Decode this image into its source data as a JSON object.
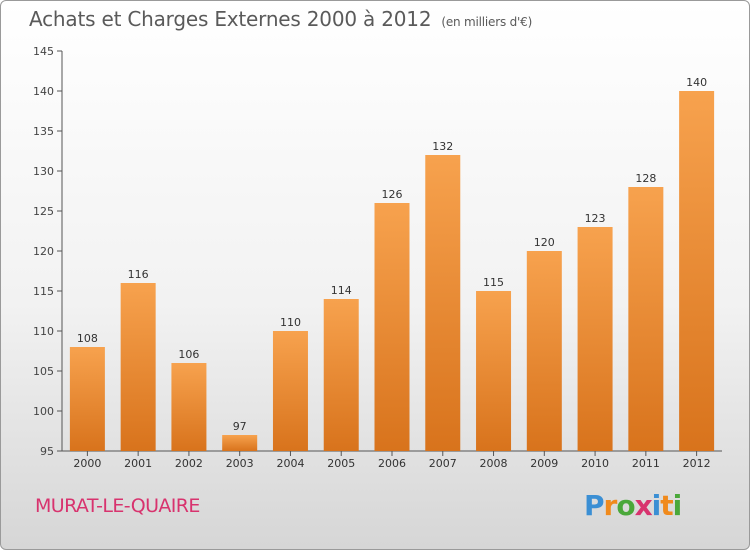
{
  "title": "Achats et Charges Externes 2000 à 2012",
  "unit": "(en milliers d'€)",
  "commune": "MURAT-LE-QUAIRE",
  "brand": {
    "letters": [
      "P",
      "r",
      "o",
      "x",
      "i",
      "t",
      "i"
    ],
    "colors": [
      "#3b8fd4",
      "#f08a1c",
      "#4aa83a",
      "#d8336e",
      "#3b8fd4",
      "#f08a1c",
      "#4aa83a"
    ]
  },
  "colors": {
    "bar_top": "#f7a24e",
    "bar_bottom": "#d8731c",
    "axis": "#555555",
    "grid": "#dddddd"
  },
  "chart_data": {
    "type": "bar",
    "title": "Achats et Charges Externes 2000 à 2012",
    "unit": "(en milliers d'€)",
    "categories": [
      "2000",
      "2001",
      "2002",
      "2003",
      "2004",
      "2005",
      "2006",
      "2007",
      "2008",
      "2009",
      "2010",
      "2011",
      "2012"
    ],
    "values": [
      108,
      116,
      106,
      97,
      110,
      114,
      126,
      132,
      115,
      120,
      123,
      128,
      140
    ],
    "ylim": [
      95,
      145
    ],
    "yticks": [
      95,
      100,
      105,
      110,
      115,
      120,
      125,
      130,
      135,
      140,
      145
    ],
    "grid": false,
    "legend": "none"
  }
}
